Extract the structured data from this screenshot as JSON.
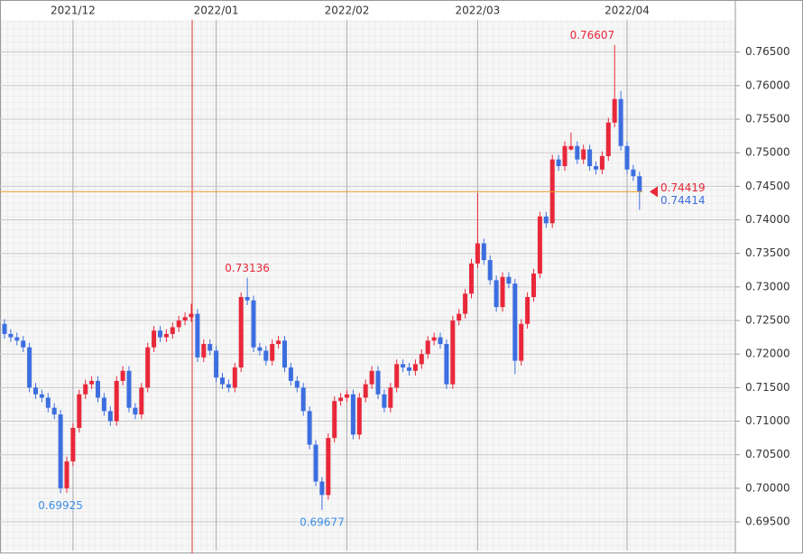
{
  "chart_data": {
    "type": "candlestick",
    "up_color": "#e8283a",
    "down_color": "#3c6ee0",
    "xticks": [
      {
        "value": 11,
        "label": "2021/12"
      },
      {
        "value": 34,
        "label": "2022/01"
      },
      {
        "value": 55,
        "label": "2022/02"
      },
      {
        "value": 76,
        "label": "2022/03"
      },
      {
        "value": 100,
        "label": "2022/04"
      }
    ],
    "ylim": [
      0.6907,
      0.7698
    ],
    "yticks": [
      {
        "value": 0.695,
        "label": "0.69500"
      },
      {
        "value": 0.7,
        "label": "0.70000"
      },
      {
        "value": 0.705,
        "label": "0.70500"
      },
      {
        "value": 0.71,
        "label": "0.71000"
      },
      {
        "value": 0.715,
        "label": "0.71500"
      },
      {
        "value": 0.72,
        "label": "0.72000"
      },
      {
        "value": 0.725,
        "label": "0.72500"
      },
      {
        "value": 0.73,
        "label": "0.73000"
      },
      {
        "value": 0.735,
        "label": "0.73500"
      },
      {
        "value": 0.74,
        "label": "0.74000"
      },
      {
        "value": 0.745,
        "label": "0.74500"
      },
      {
        "value": 0.75,
        "label": "0.75000"
      },
      {
        "value": 0.755,
        "label": "0.75500"
      },
      {
        "value": 0.76,
        "label": "0.76000"
      },
      {
        "value": 0.765,
        "label": "0.76500"
      }
    ],
    "open": [
      0.7245,
      0.723,
      0.7225,
      0.722,
      0.721,
      0.715,
      0.714,
      0.7135,
      0.712,
      0.711,
      0.7,
      0.704,
      0.709,
      0.714,
      0.7155,
      0.716,
      0.7135,
      0.7115,
      0.71,
      0.716,
      0.7175,
      0.712,
      0.711,
      0.715,
      0.721,
      0.7235,
      0.7225,
      0.723,
      0.724,
      0.725,
      0.7255,
      0.726,
      0.7195,
      0.7215,
      0.7205,
      0.7165,
      0.7155,
      0.715,
      0.718,
      0.7285,
      0.728,
      0.721,
      0.7205,
      0.719,
      0.7215,
      0.722,
      0.718,
      0.716,
      0.715,
      0.7115,
      0.7065,
      0.701,
      0.699,
      0.7075,
      0.713,
      0.7135,
      0.714,
      0.708,
      0.7135,
      0.7155,
      0.7175,
      0.714,
      0.712,
      0.715,
      0.7185,
      0.718,
      0.7175,
      0.7185,
      0.72,
      0.722,
      0.7225,
      0.7215,
      0.7155,
      0.725,
      0.726,
      0.729,
      0.7335,
      0.7365,
      0.734,
      0.731,
      0.727,
      0.7315,
      0.7305,
      0.719,
      0.7245,
      0.7285,
      0.732,
      0.7405,
      0.7395,
      0.749,
      0.748,
      0.7505,
      0.751,
      0.749,
      0.7505,
      0.748,
      0.7475,
      0.7495,
      0.7545,
      0.758,
      0.751,
      0.7475,
      0.7465
    ],
    "high": [
      0.7252,
      0.7237,
      0.7232,
      0.7227,
      0.7217,
      0.7157,
      0.7147,
      0.7142,
      0.7127,
      0.7117,
      0.7047,
      0.7097,
      0.7147,
      0.7162,
      0.7167,
      0.7167,
      0.7142,
      0.7122,
      0.7167,
      0.7182,
      0.7182,
      0.7127,
      0.7157,
      0.7217,
      0.7242,
      0.7242,
      0.7237,
      0.7247,
      0.7257,
      0.7262,
      0.7275,
      0.7267,
      0.7222,
      0.7222,
      0.7212,
      0.7172,
      0.7162,
      0.7187,
      0.7292,
      0.73136,
      0.7287,
      0.7217,
      0.7212,
      0.7222,
      0.7227,
      0.7227,
      0.7187,
      0.7167,
      0.7157,
      0.7122,
      0.7072,
      0.7017,
      0.7082,
      0.7137,
      0.7142,
      0.7147,
      0.7147,
      0.7142,
      0.7162,
      0.7182,
      0.7182,
      0.7147,
      0.7157,
      0.7192,
      0.7192,
      0.7187,
      0.7192,
      0.7207,
      0.7227,
      0.7232,
      0.7232,
      0.7222,
      0.7257,
      0.7267,
      0.7297,
      0.7342,
      0.744,
      0.7372,
      0.7347,
      0.7317,
      0.7322,
      0.7322,
      0.7312,
      0.7252,
      0.7292,
      0.7327,
      0.7412,
      0.7412,
      0.7497,
      0.7497,
      0.7517,
      0.753,
      0.7517,
      0.7512,
      0.7512,
      0.7487,
      0.7502,
      0.7552,
      0.76607,
      0.7592,
      0.7517,
      0.7482,
      0.7472
    ],
    "low": [
      0.7223,
      0.7218,
      0.7213,
      0.7203,
      0.7143,
      0.7133,
      0.7128,
      0.7113,
      0.7103,
      0.69925,
      0.6993,
      0.7033,
      0.7083,
      0.7133,
      0.7148,
      0.7128,
      0.7108,
      0.7093,
      0.7093,
      0.7153,
      0.7113,
      0.7103,
      0.7103,
      0.7143,
      0.7203,
      0.7218,
      0.7218,
      0.7223,
      0.7233,
      0.7243,
      0.7248,
      0.7188,
      0.7188,
      0.7198,
      0.7158,
      0.7148,
      0.7143,
      0.7143,
      0.7173,
      0.7273,
      0.7203,
      0.7198,
      0.7183,
      0.7183,
      0.7208,
      0.7173,
      0.7153,
      0.7143,
      0.7108,
      0.7058,
      0.7003,
      0.69677,
      0.6983,
      0.7068,
      0.7123,
      0.7128,
      0.7073,
      0.7073,
      0.7128,
      0.7148,
      0.7133,
      0.7113,
      0.7113,
      0.7143,
      0.7173,
      0.7168,
      0.7168,
      0.7178,
      0.7193,
      0.7213,
      0.7208,
      0.7148,
      0.7148,
      0.7243,
      0.7253,
      0.7283,
      0.7328,
      0.7333,
      0.7303,
      0.7263,
      0.7263,
      0.7298,
      0.717,
      0.7183,
      0.7238,
      0.7278,
      0.7313,
      0.7388,
      0.7388,
      0.7473,
      0.7473,
      0.7503,
      0.7483,
      0.7483,
      0.7473,
      0.7468,
      0.7468,
      0.7488,
      0.7538,
      0.7503,
      0.7468,
      0.7458,
      0.7415
    ],
    "close": [
      0.723,
      0.7225,
      0.722,
      0.721,
      0.715,
      0.714,
      0.7135,
      0.712,
      0.711,
      0.7,
      0.704,
      0.709,
      0.714,
      0.7155,
      0.716,
      0.7135,
      0.7115,
      0.71,
      0.716,
      0.7175,
      0.712,
      0.711,
      0.715,
      0.721,
      0.7235,
      0.7225,
      0.723,
      0.724,
      0.725,
      0.7255,
      0.726,
      0.7195,
      0.7215,
      0.7205,
      0.7165,
      0.7155,
      0.715,
      0.718,
      0.7285,
      0.728,
      0.721,
      0.7205,
      0.719,
      0.7215,
      0.722,
      0.718,
      0.716,
      0.715,
      0.7115,
      0.7065,
      0.701,
      0.699,
      0.7075,
      0.713,
      0.7135,
      0.714,
      0.708,
      0.7135,
      0.7155,
      0.7175,
      0.714,
      0.712,
      0.715,
      0.7185,
      0.718,
      0.7175,
      0.7185,
      0.72,
      0.722,
      0.7225,
      0.7215,
      0.7155,
      0.725,
      0.726,
      0.729,
      0.7335,
      0.7365,
      0.734,
      0.731,
      0.727,
      0.7315,
      0.7305,
      0.719,
      0.7245,
      0.7285,
      0.732,
      0.7405,
      0.7395,
      0.749,
      0.748,
      0.751,
      0.751,
      0.749,
      0.7505,
      0.748,
      0.7475,
      0.7495,
      0.7545,
      0.758,
      0.751,
      0.7475,
      0.7465,
      0.74414
    ],
    "high_labels": [
      0.73136,
      0.76607
    ],
    "low_labels": [
      0.69925,
      0.69677
    ],
    "ask": 0.74419,
    "ask_color": "#f0a030"
  }
}
